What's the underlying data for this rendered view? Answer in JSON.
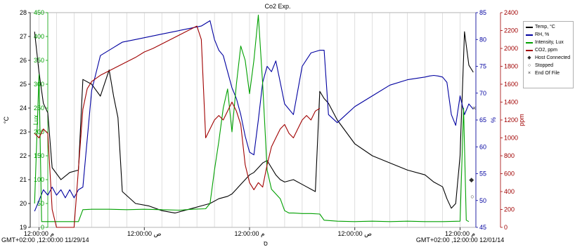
{
  "chart_data": {
    "type": "line",
    "title": "Co2 Exp.",
    "xlabel": "ס",
    "x_ticks": [
      {
        "lines": [
          "12:00:00 م",
          "GMT+02:00 ,12:00:00 11/29/14"
        ],
        "hours": 0
      },
      {
        "lines": [
          "12:00:00 ص"
        ],
        "hours": 12
      },
      {
        "lines": [
          "12:00:00 م"
        ],
        "hours": 24
      },
      {
        "lines": [
          "12:00:00 ص"
        ],
        "hours": 36
      },
      {
        "lines": [
          "12:00:00 م",
          "GMT+02:00 ,12:00:00 12/01/14"
        ],
        "hours": 48
      }
    ],
    "axes": [
      {
        "id": "temp",
        "label": "°C",
        "color": "#000000",
        "range": [
          19,
          28
        ],
        "ticks": [
          "19",
          "20",
          "21",
          "22",
          "23",
          "24",
          "25",
          "26",
          "27",
          "28"
        ]
      },
      {
        "id": "lux",
        "label": "Lux",
        "color": "#00a000",
        "range": [
          0,
          450
        ],
        "ticks": [
          "0",
          "50",
          "100",
          "150",
          "200",
          "250",
          "300",
          "350",
          "400",
          "450"
        ]
      },
      {
        "id": "rh",
        "label": "%",
        "color": "#0000a0",
        "range": [
          45,
          85
        ],
        "ticks": [
          "45",
          "50",
          "55",
          "60",
          "65",
          "70",
          "75",
          "80",
          "85"
        ]
      },
      {
        "id": "co2",
        "label": "ppm",
        "color": "#a00000",
        "range": [
          0,
          2400
        ],
        "ticks": [
          "0",
          "200",
          "400",
          "600",
          "800",
          "1000",
          "1200",
          "1400",
          "1600",
          "1800",
          "2000",
          "2200",
          "2400"
        ]
      }
    ],
    "series": [
      {
        "name": "Temp, °C",
        "axis": "temp",
        "color": "#000000",
        "x": [
          -0.5,
          0.0,
          0.5,
          1.0,
          1.5,
          2.5,
          3.5,
          4.5,
          5.0,
          6.0,
          7.0,
          8.0,
          8.5,
          9.0,
          9.5,
          11.0,
          12.5,
          14.0,
          15.5,
          16.5,
          17.5,
          18.5,
          19.5,
          20.5,
          21.5,
          22.0,
          22.5,
          23.0,
          23.5,
          24.0,
          24.5,
          25.0,
          25.5,
          26.0,
          26.5,
          27.0,
          27.5,
          28.0,
          29.0,
          30.0,
          30.5,
          31.0,
          31.5,
          32.0,
          32.5,
          33.0,
          34.0,
          36.0,
          38.0,
          40.0,
          42.0,
          44.0,
          45.0,
          46.0,
          46.5,
          47.0,
          47.5,
          48.0,
          48.5,
          49.0,
          49.5
        ],
        "y": [
          27.2,
          25.5,
          24.2,
          23.8,
          21.5,
          21.0,
          21.3,
          21.4,
          25.2,
          25.0,
          24.5,
          25.6,
          24.5,
          23.6,
          20.5,
          20.0,
          19.9,
          19.7,
          19.6,
          19.7,
          19.8,
          19.9,
          20.0,
          20.2,
          20.3,
          20.4,
          20.6,
          20.8,
          21.0,
          21.2,
          21.3,
          21.5,
          21.7,
          21.8,
          21.5,
          21.2,
          21.0,
          20.9,
          21.0,
          20.8,
          20.7,
          20.6,
          20.5,
          24.7,
          24.4,
          24.2,
          23.5,
          22.5,
          22.0,
          21.7,
          21.4,
          21.2,
          20.9,
          20.7,
          20.2,
          19.8,
          20.0,
          22.0,
          27.2,
          25.8,
          25.5
        ]
      },
      {
        "name": "RH, %",
        "axis": "rh",
        "color": "#0000a0",
        "x": [
          -0.5,
          0.0,
          0.5,
          1.0,
          1.5,
          2.0,
          2.5,
          3.0,
          3.5,
          4.0,
          4.5,
          5.0,
          6.0,
          7.0,
          8.5,
          9.0,
          9.5,
          11.0,
          12.5,
          14.0,
          15.5,
          17.0,
          18.5,
          19.5,
          20.0,
          20.5,
          21.0,
          21.5,
          22.0,
          22.5,
          23.0,
          23.5,
          24.0,
          24.5,
          25.0,
          25.5,
          26.0,
          26.5,
          27.0,
          27.5,
          28.0,
          29.0,
          30.0,
          31.0,
          32.0,
          32.5,
          33.0,
          34.0,
          35.0,
          36.0,
          38.0,
          40.0,
          42.0,
          44.0,
          44.5,
          45.0,
          45.5,
          46.0,
          46.5,
          47.0,
          47.5,
          48.0,
          48.5,
          49.0,
          49.5
        ],
        "y": [
          48.0,
          50.0,
          52.0,
          51.0,
          52.5,
          51.0,
          52.0,
          50.5,
          52.0,
          50.5,
          52.0,
          52.5,
          70.5,
          77.0,
          78.5,
          79.0,
          79.5,
          80.0,
          80.5,
          81.0,
          81.5,
          82.0,
          82.5,
          83.5,
          80.0,
          78.0,
          77.0,
          74.0,
          71.0,
          69.0,
          66.0,
          62.0,
          59.0,
          58.5,
          65.0,
          72.0,
          75.0,
          74.0,
          76.0,
          72.0,
          68.0,
          66.0,
          75.0,
          77.5,
          78.0,
          78.0,
          66.0,
          64.5,
          66.0,
          67.5,
          69.5,
          71.5,
          72.5,
          73.0,
          73.2,
          73.3,
          73.2,
          73.0,
          72.0,
          66.0,
          64.0,
          69.5,
          66.0,
          68.0,
          67.0
        ]
      },
      {
        "name": "Intensity, Lux",
        "axis": "lux",
        "color": "#00a000",
        "x": [
          -0.5,
          0.0,
          0.3,
          0.6,
          1.0,
          1.5,
          2.0,
          2.5,
          3.0,
          3.5,
          4.0,
          4.5,
          5.0,
          6.0,
          8.0,
          10.0,
          12.0,
          14.0,
          16.0,
          17.5,
          19.0,
          19.5,
          20.0,
          20.5,
          21.0,
          21.5,
          22.0,
          22.5,
          23.0,
          23.5,
          24.0,
          24.5,
          25.0,
          25.5,
          26.0,
          26.5,
          27.0,
          27.5,
          28.0,
          28.5,
          29.0,
          30.0,
          31.0,
          32.0,
          32.5,
          34.0,
          36.0,
          38.0,
          40.0,
          42.0,
          44.0,
          46.0,
          48.0,
          48.4,
          48.7,
          49.0
        ],
        "y": [
          50.0,
          320.0,
          12.0,
          12.0,
          12.0,
          12.0,
          12.0,
          12.0,
          12.0,
          12.0,
          12.0,
          12.0,
          37.0,
          38.0,
          38.0,
          37.0,
          38.0,
          37.0,
          36.0,
          38.0,
          39.0,
          50.0,
          120.0,
          180.0,
          250.0,
          290.0,
          200.0,
          300.0,
          380.0,
          350.0,
          280.0,
          350.0,
          445.0,
          300.0,
          120.0,
          80.0,
          70.0,
          60.0,
          35.0,
          30.0,
          30.0,
          29.0,
          29.0,
          28.0,
          15.0,
          13.0,
          12.0,
          13.0,
          12.0,
          13.0,
          12.0,
          12.0,
          13.0,
          250.0,
          15.0,
          12.0
        ]
      },
      {
        "name": "CO2, ppm",
        "axis": "co2",
        "color": "#a00000",
        "x": [
          -0.5,
          0.0,
          0.5,
          1.0,
          1.5,
          2.0,
          3.0,
          4.0,
          5.0,
          5.5,
          6.0,
          7.0,
          8.0,
          9.0,
          10.0,
          11.0,
          12.0,
          13.0,
          14.0,
          15.0,
          16.0,
          17.0,
          18.0,
          18.5,
          19.0,
          19.5,
          20.0,
          20.5,
          21.0,
          21.5,
          22.0,
          22.5,
          23.0,
          23.5,
          24.0,
          24.5,
          25.0,
          25.5,
          26.0,
          26.5,
          27.0,
          27.5,
          28.0,
          28.5,
          29.0,
          29.5,
          30.0,
          30.5,
          31.0,
          31.5,
          32.0
        ],
        "y": [
          1050.0,
          1000.0,
          1100.0,
          1050.0,
          200.0,
          0.0,
          0.0,
          0.0,
          1320.0,
          1550.0,
          1630.0,
          1700.0,
          1750.0,
          1800.0,
          1850.0,
          1900.0,
          1960.0,
          2000.0,
          2050.0,
          2100.0,
          2150.0,
          2200.0,
          2250.0,
          2100.0,
          1000.0,
          1100.0,
          1200.0,
          1250.0,
          1200.0,
          1300.0,
          1400.0,
          1300.0,
          1150.0,
          700.0,
          500.0,
          420.0,
          500.0,
          450.0,
          700.0,
          900.0,
          1000.0,
          1100.0,
          1150.0,
          1050.0,
          1000.0,
          1100.0,
          1200.0,
          1250.0,
          1200.0,
          1300.0,
          1330.0
        ]
      }
    ],
    "markers": [
      {
        "name": "Host Connected",
        "symbol": "◆",
        "color": "#303030"
      },
      {
        "name": "Stopped",
        "symbol": "○",
        "color": "#303030"
      },
      {
        "name": "End Of File",
        "symbol": "×",
        "color": "#303030"
      }
    ],
    "x_range_hours": [
      -1.0,
      49.8
    ],
    "grid": "vertical",
    "legend_position": "right"
  }
}
